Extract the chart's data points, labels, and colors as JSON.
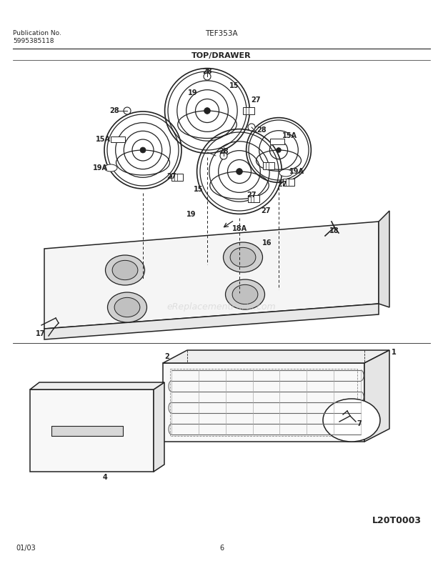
{
  "title_center": "TEF353A",
  "title_left_line1": "Publication No.",
  "title_left_line2": "5995385118",
  "section_label": "TOP/DRAWER",
  "bottom_left": "01/03",
  "bottom_center": "6",
  "bottom_right": "L20T0003",
  "watermark": "eReplacementParts.com",
  "bg_color": "#ffffff",
  "line_color": "#222222",
  "text_color": "#222222"
}
